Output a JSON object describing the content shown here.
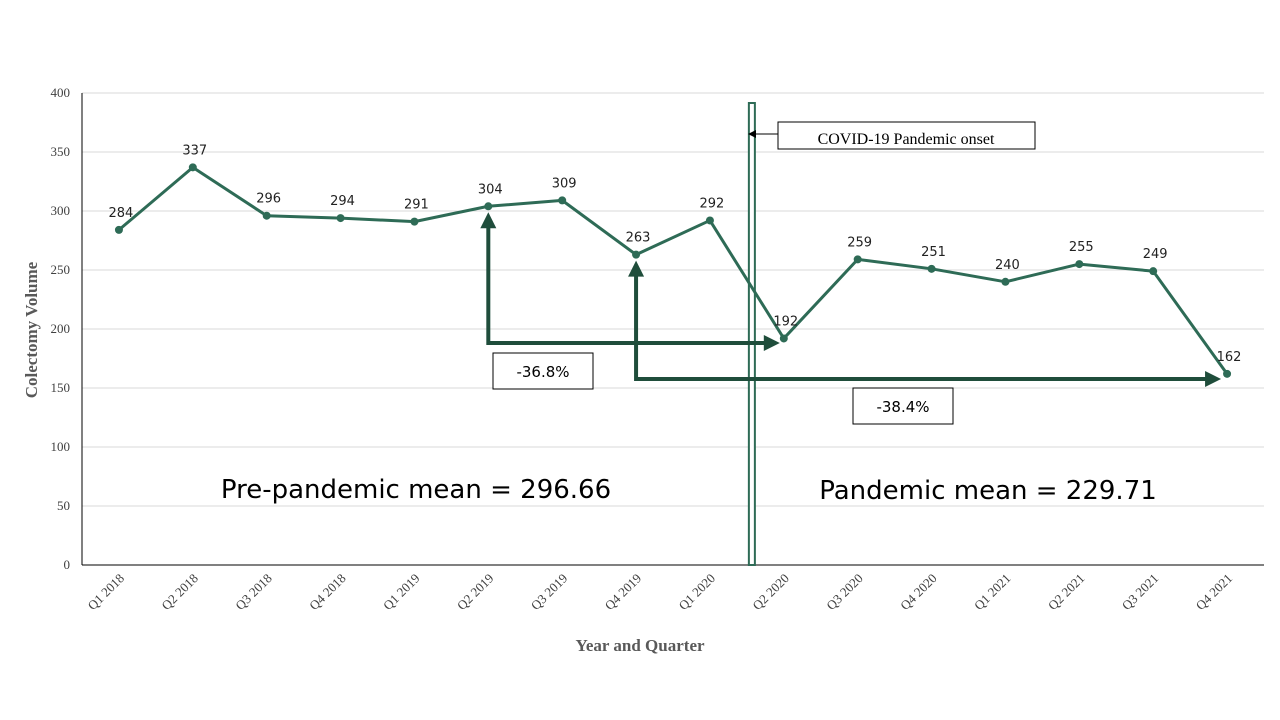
{
  "chart_data": {
    "type": "line",
    "categories": [
      "Q1 2018",
      "Q2 2018",
      "Q3 2018",
      "Q4 2018",
      "Q1 2019",
      "Q2 2019",
      "Q3 2019",
      "Q4 2019",
      "Q1 2020",
      "Q2 2020",
      "Q3 2020",
      "Q4 2020",
      "Q1 2021",
      "Q2 2021",
      "Q3 2021",
      "Q4 2021"
    ],
    "values": [
      284,
      337,
      296,
      294,
      291,
      304,
      309,
      263,
      292,
      192,
      259,
      251,
      240,
      255,
      249,
      162
    ],
    "ylim": [
      0,
      400
    ],
    "yticks": [
      "0",
      "50",
      "100",
      "150",
      "200",
      "250",
      "300",
      "350",
      "400"
    ],
    "xlabel": "Year and Quarter",
    "ylabel": "Colectomy Volume",
    "grid": true,
    "series_color": "#2e6b56",
    "arrow_color": "#1f4d3b",
    "annotations": {
      "pandemic_onset": "COVID-19 Pandemic onset",
      "drop_one": "-36.8%",
      "drop_two": "-38.4%",
      "pre_mean": "Pre-pandemic mean = 296.66",
      "pandemic_mean": "Pandemic mean = 229.71"
    }
  }
}
